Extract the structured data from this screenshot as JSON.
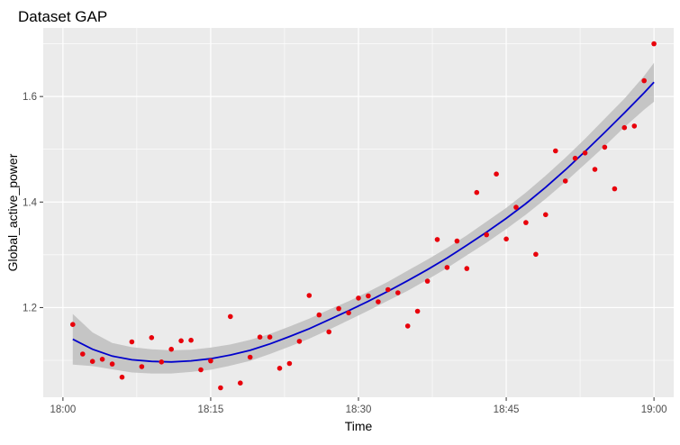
{
  "chart_data": {
    "type": "scatter",
    "title": "Dataset GAP",
    "xlabel": "Time",
    "ylabel": "Global_active_power",
    "x_unit": "minutes after 18:00",
    "xlim": [
      -2,
      62
    ],
    "ylim": [
      1.03,
      1.73
    ],
    "x_ticks": [
      {
        "value": 0,
        "label": "18:00"
      },
      {
        "value": 15,
        "label": "18:15"
      },
      {
        "value": 30,
        "label": "18:30"
      },
      {
        "value": 45,
        "label": "18:45"
      },
      {
        "value": 60,
        "label": "19:00"
      }
    ],
    "y_ticks": [
      {
        "value": 1.2,
        "label": "1.2"
      },
      {
        "value": 1.4,
        "label": "1.4"
      },
      {
        "value": 1.6,
        "label": "1.6"
      }
    ],
    "grid": true,
    "points_color": "#e8000b",
    "smooth_color": "#0000cc",
    "band_color": "#bebebe",
    "panel_color": "#ebebeb",
    "series": [
      {
        "kind": "points",
        "x": [
          1,
          2,
          3,
          4,
          5,
          6,
          7,
          8,
          9,
          10,
          11,
          12,
          13,
          14,
          15,
          16,
          17,
          18,
          19,
          20,
          21,
          22,
          23,
          24,
          25,
          26,
          27,
          28,
          29,
          30,
          31,
          32,
          33,
          34,
          35,
          36,
          37,
          38,
          39,
          40,
          41,
          42,
          43,
          44,
          45,
          46,
          47,
          48,
          49,
          50,
          51,
          52,
          53,
          54,
          55,
          56,
          57,
          58,
          59,
          60
        ],
        "y": [
          1.168,
          1.112,
          1.098,
          1.102,
          1.093,
          1.068,
          1.135,
          1.088,
          1.143,
          1.097,
          1.121,
          1.137,
          1.138,
          1.082,
          1.099,
          1.048,
          1.183,
          1.057,
          1.106,
          1.144,
          1.144,
          1.085,
          1.094,
          1.136,
          1.223,
          1.186,
          1.154,
          1.198,
          1.19,
          1.218,
          1.222,
          1.211,
          1.234,
          1.228,
          1.165,
          1.193,
          1.25,
          1.329,
          1.276,
          1.326,
          1.274,
          1.418,
          1.338,
          1.453,
          1.33,
          1.39,
          1.361,
          1.301,
          1.376,
          1.497,
          1.44,
          1.483,
          1.493,
          1.462,
          1.504,
          1.425,
          1.541,
          1.544,
          1.63,
          1.7
        ]
      },
      {
        "kind": "smooth",
        "x": [
          1,
          3,
          5,
          7,
          9,
          11,
          13,
          15,
          17,
          19,
          21,
          23,
          25,
          27,
          29,
          31,
          33,
          35,
          37,
          39,
          41,
          43,
          45,
          47,
          49,
          51,
          53,
          55,
          57,
          59,
          60
        ],
        "y": [
          1.14,
          1.121,
          1.108,
          1.101,
          1.098,
          1.097,
          1.099,
          1.103,
          1.11,
          1.119,
          1.131,
          1.145,
          1.16,
          1.177,
          1.194,
          1.212,
          1.231,
          1.251,
          1.272,
          1.294,
          1.318,
          1.343,
          1.369,
          1.397,
          1.428,
          1.461,
          1.496,
          1.532,
          1.569,
          1.607,
          1.627
        ],
        "lower": [
          1.092,
          1.089,
          1.083,
          1.077,
          1.075,
          1.075,
          1.078,
          1.082,
          1.09,
          1.099,
          1.112,
          1.126,
          1.141,
          1.158,
          1.176,
          1.194,
          1.213,
          1.232,
          1.253,
          1.275,
          1.299,
          1.323,
          1.349,
          1.376,
          1.406,
          1.438,
          1.472,
          1.506,
          1.542,
          1.575,
          1.59
        ],
        "upper": [
          1.188,
          1.153,
          1.133,
          1.125,
          1.121,
          1.119,
          1.12,
          1.124,
          1.13,
          1.139,
          1.15,
          1.164,
          1.179,
          1.196,
          1.212,
          1.23,
          1.249,
          1.27,
          1.291,
          1.313,
          1.337,
          1.363,
          1.389,
          1.418,
          1.45,
          1.484,
          1.52,
          1.558,
          1.596,
          1.639,
          1.664
        ]
      }
    ]
  }
}
